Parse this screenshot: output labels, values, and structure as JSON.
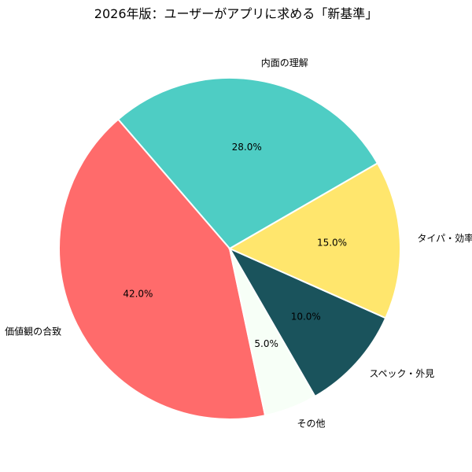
{
  "chart_data": {
    "type": "pie",
    "title": "2026年版：ユーザーがアプリに求める「新基準」",
    "categories": [
      "内面の理解",
      "価値観の合致",
      "その他",
      "スペック・外見",
      "タイパ・効率"
    ],
    "values": [
      28.0,
      42.0,
      5.0,
      10.0,
      15.0
    ],
    "labels_pct": [
      "28.0%",
      "42.0%",
      "5.0%",
      "10.0%",
      "15.0%"
    ],
    "colors": [
      "#4ECDC4",
      "#FF6B6B",
      "#F7FFF7",
      "#1A535C",
      "#FFE66D"
    ],
    "start_angle_deg": 30,
    "direction": "counterclockwise",
    "legend": "none"
  }
}
